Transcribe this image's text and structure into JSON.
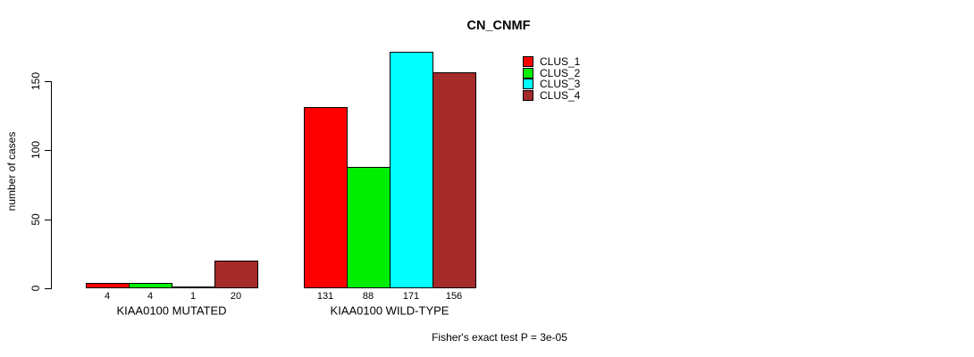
{
  "chart_data": {
    "type": "bar",
    "title": "CN_CNMF",
    "ylabel": "number of cases",
    "xlabel": "",
    "ylim": [
      0,
      150
    ],
    "yticks": [
      0,
      50,
      100,
      150
    ],
    "grid": false,
    "legend_position": "top-right",
    "categories": [
      "KIAA0100 MUTATED",
      "KIAA0100 WILD-TYPE"
    ],
    "groups": [
      {
        "label": "KIAA0100 MUTATED",
        "values": [
          4,
          4,
          1,
          20
        ]
      },
      {
        "label": "KIAA0100 WILD-TYPE",
        "values": [
          131,
          88,
          171,
          156
        ]
      }
    ],
    "series": [
      {
        "name": "CLUS_1",
        "color": "#ff0000"
      },
      {
        "name": "CLUS_2",
        "color": "#00ee00"
      },
      {
        "name": "CLUS_3",
        "color": "#00ffff"
      },
      {
        "name": "CLUS_4",
        "color": "#a52a2a"
      }
    ],
    "annotation": "Fisher's exact test P = 3e-05"
  }
}
